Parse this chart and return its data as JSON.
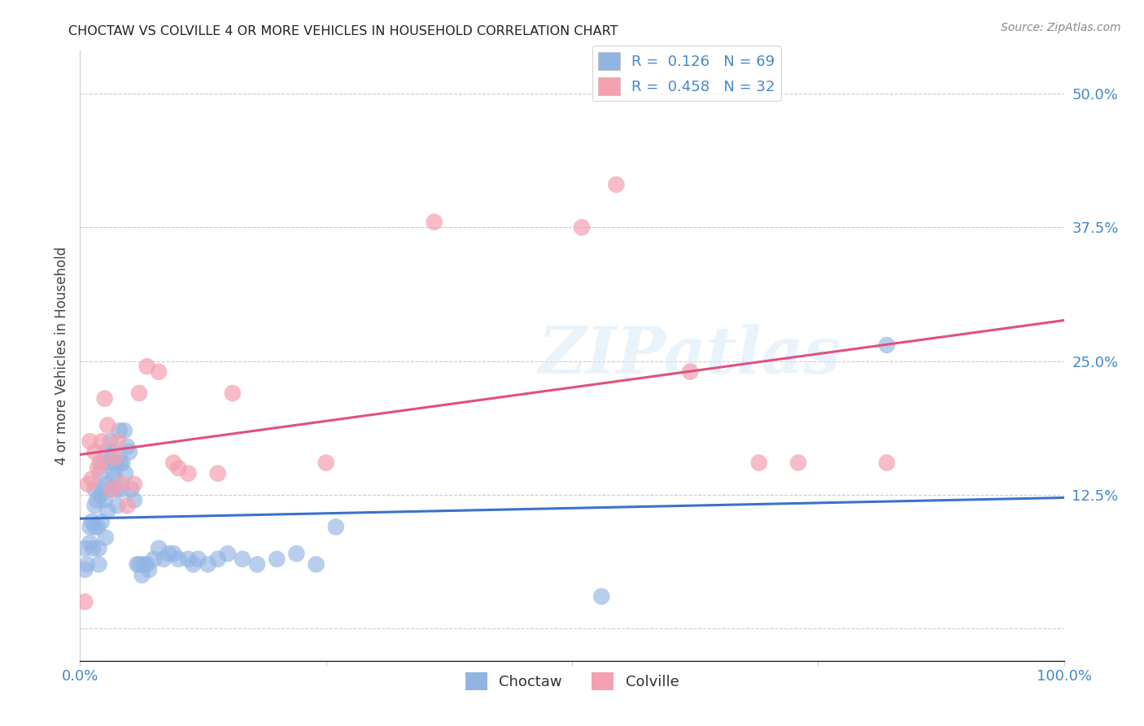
{
  "title": "CHOCTAW VS COLVILLE 4 OR MORE VEHICLES IN HOUSEHOLD CORRELATION CHART",
  "source": "Source: ZipAtlas.com",
  "ylabel": "4 or more Vehicles in Household",
  "xlim": [
    0.0,
    1.0
  ],
  "ylim": [
    -0.03,
    0.54
  ],
  "xticks": [
    0.0,
    0.25,
    0.5,
    0.75,
    1.0
  ],
  "xticklabels": [
    "0.0%",
    "",
    "",
    "",
    "100.0%"
  ],
  "yticks": [
    0.0,
    0.125,
    0.25,
    0.375,
    0.5
  ],
  "yticklabels": [
    "",
    "12.5%",
    "25.0%",
    "37.5%",
    "50.0%"
  ],
  "choctaw_color": "#92b4e3",
  "colville_color": "#f4a0b0",
  "choctaw_line_color": "#3a72c8",
  "colville_line_color": "#e05080",
  "R_choctaw": 0.126,
  "N_choctaw": 69,
  "R_colville": 0.458,
  "N_colville": 32,
  "legend_label_choctaw": "Choctaw",
  "legend_label_colville": "Colville",
  "watermark": "ZIPatlas",
  "choctaw_x": [
    0.005,
    0.005,
    0.007,
    0.01,
    0.01,
    0.012,
    0.013,
    0.015,
    0.015,
    0.015,
    0.017,
    0.018,
    0.019,
    0.019,
    0.02,
    0.021,
    0.022,
    0.023,
    0.024,
    0.025,
    0.025,
    0.026,
    0.027,
    0.028,
    0.03,
    0.031,
    0.032,
    0.033,
    0.034,
    0.035,
    0.036,
    0.037,
    0.038,
    0.04,
    0.041,
    0.042,
    0.043,
    0.045,
    0.046,
    0.048,
    0.05,
    0.052,
    0.055,
    0.058,
    0.06,
    0.063,
    0.065,
    0.068,
    0.07,
    0.075,
    0.08,
    0.085,
    0.09,
    0.095,
    0.1,
    0.11,
    0.115,
    0.12,
    0.13,
    0.14,
    0.15,
    0.165,
    0.18,
    0.2,
    0.22,
    0.24,
    0.26,
    0.53,
    0.82
  ],
  "choctaw_y": [
    0.075,
    0.055,
    0.06,
    0.095,
    0.08,
    0.1,
    0.075,
    0.13,
    0.115,
    0.095,
    0.12,
    0.095,
    0.075,
    0.06,
    0.145,
    0.125,
    0.1,
    0.155,
    0.13,
    0.165,
    0.12,
    0.085,
    0.135,
    0.11,
    0.155,
    0.175,
    0.13,
    0.165,
    0.14,
    0.145,
    0.155,
    0.13,
    0.115,
    0.185,
    0.155,
    0.13,
    0.155,
    0.185,
    0.145,
    0.17,
    0.165,
    0.13,
    0.12,
    0.06,
    0.06,
    0.05,
    0.06,
    0.06,
    0.055,
    0.065,
    0.075,
    0.065,
    0.07,
    0.07,
    0.065,
    0.065,
    0.06,
    0.065,
    0.06,
    0.065,
    0.07,
    0.065,
    0.06,
    0.065,
    0.07,
    0.06,
    0.095,
    0.03,
    0.265
  ],
  "colville_x": [
    0.005,
    0.008,
    0.01,
    0.012,
    0.015,
    0.018,
    0.02,
    0.022,
    0.025,
    0.028,
    0.032,
    0.035,
    0.038,
    0.042,
    0.048,
    0.055,
    0.06,
    0.068,
    0.08,
    0.095,
    0.1,
    0.11,
    0.14,
    0.155,
    0.25,
    0.36,
    0.51,
    0.545,
    0.62,
    0.69,
    0.73,
    0.82
  ],
  "colville_y": [
    0.025,
    0.135,
    0.175,
    0.14,
    0.165,
    0.15,
    0.155,
    0.175,
    0.215,
    0.19,
    0.13,
    0.16,
    0.175,
    0.135,
    0.115,
    0.135,
    0.22,
    0.245,
    0.24,
    0.155,
    0.15,
    0.145,
    0.145,
    0.22,
    0.155,
    0.38,
    0.375,
    0.415,
    0.24,
    0.155,
    0.155,
    0.155
  ],
  "background_color": "#ffffff",
  "grid_color": "#cccccc",
  "title_color": "#222222",
  "axis_label_color": "#444444",
  "tick_label_color_blue": "#4488cc",
  "tick_label_color_black": "#333333"
}
